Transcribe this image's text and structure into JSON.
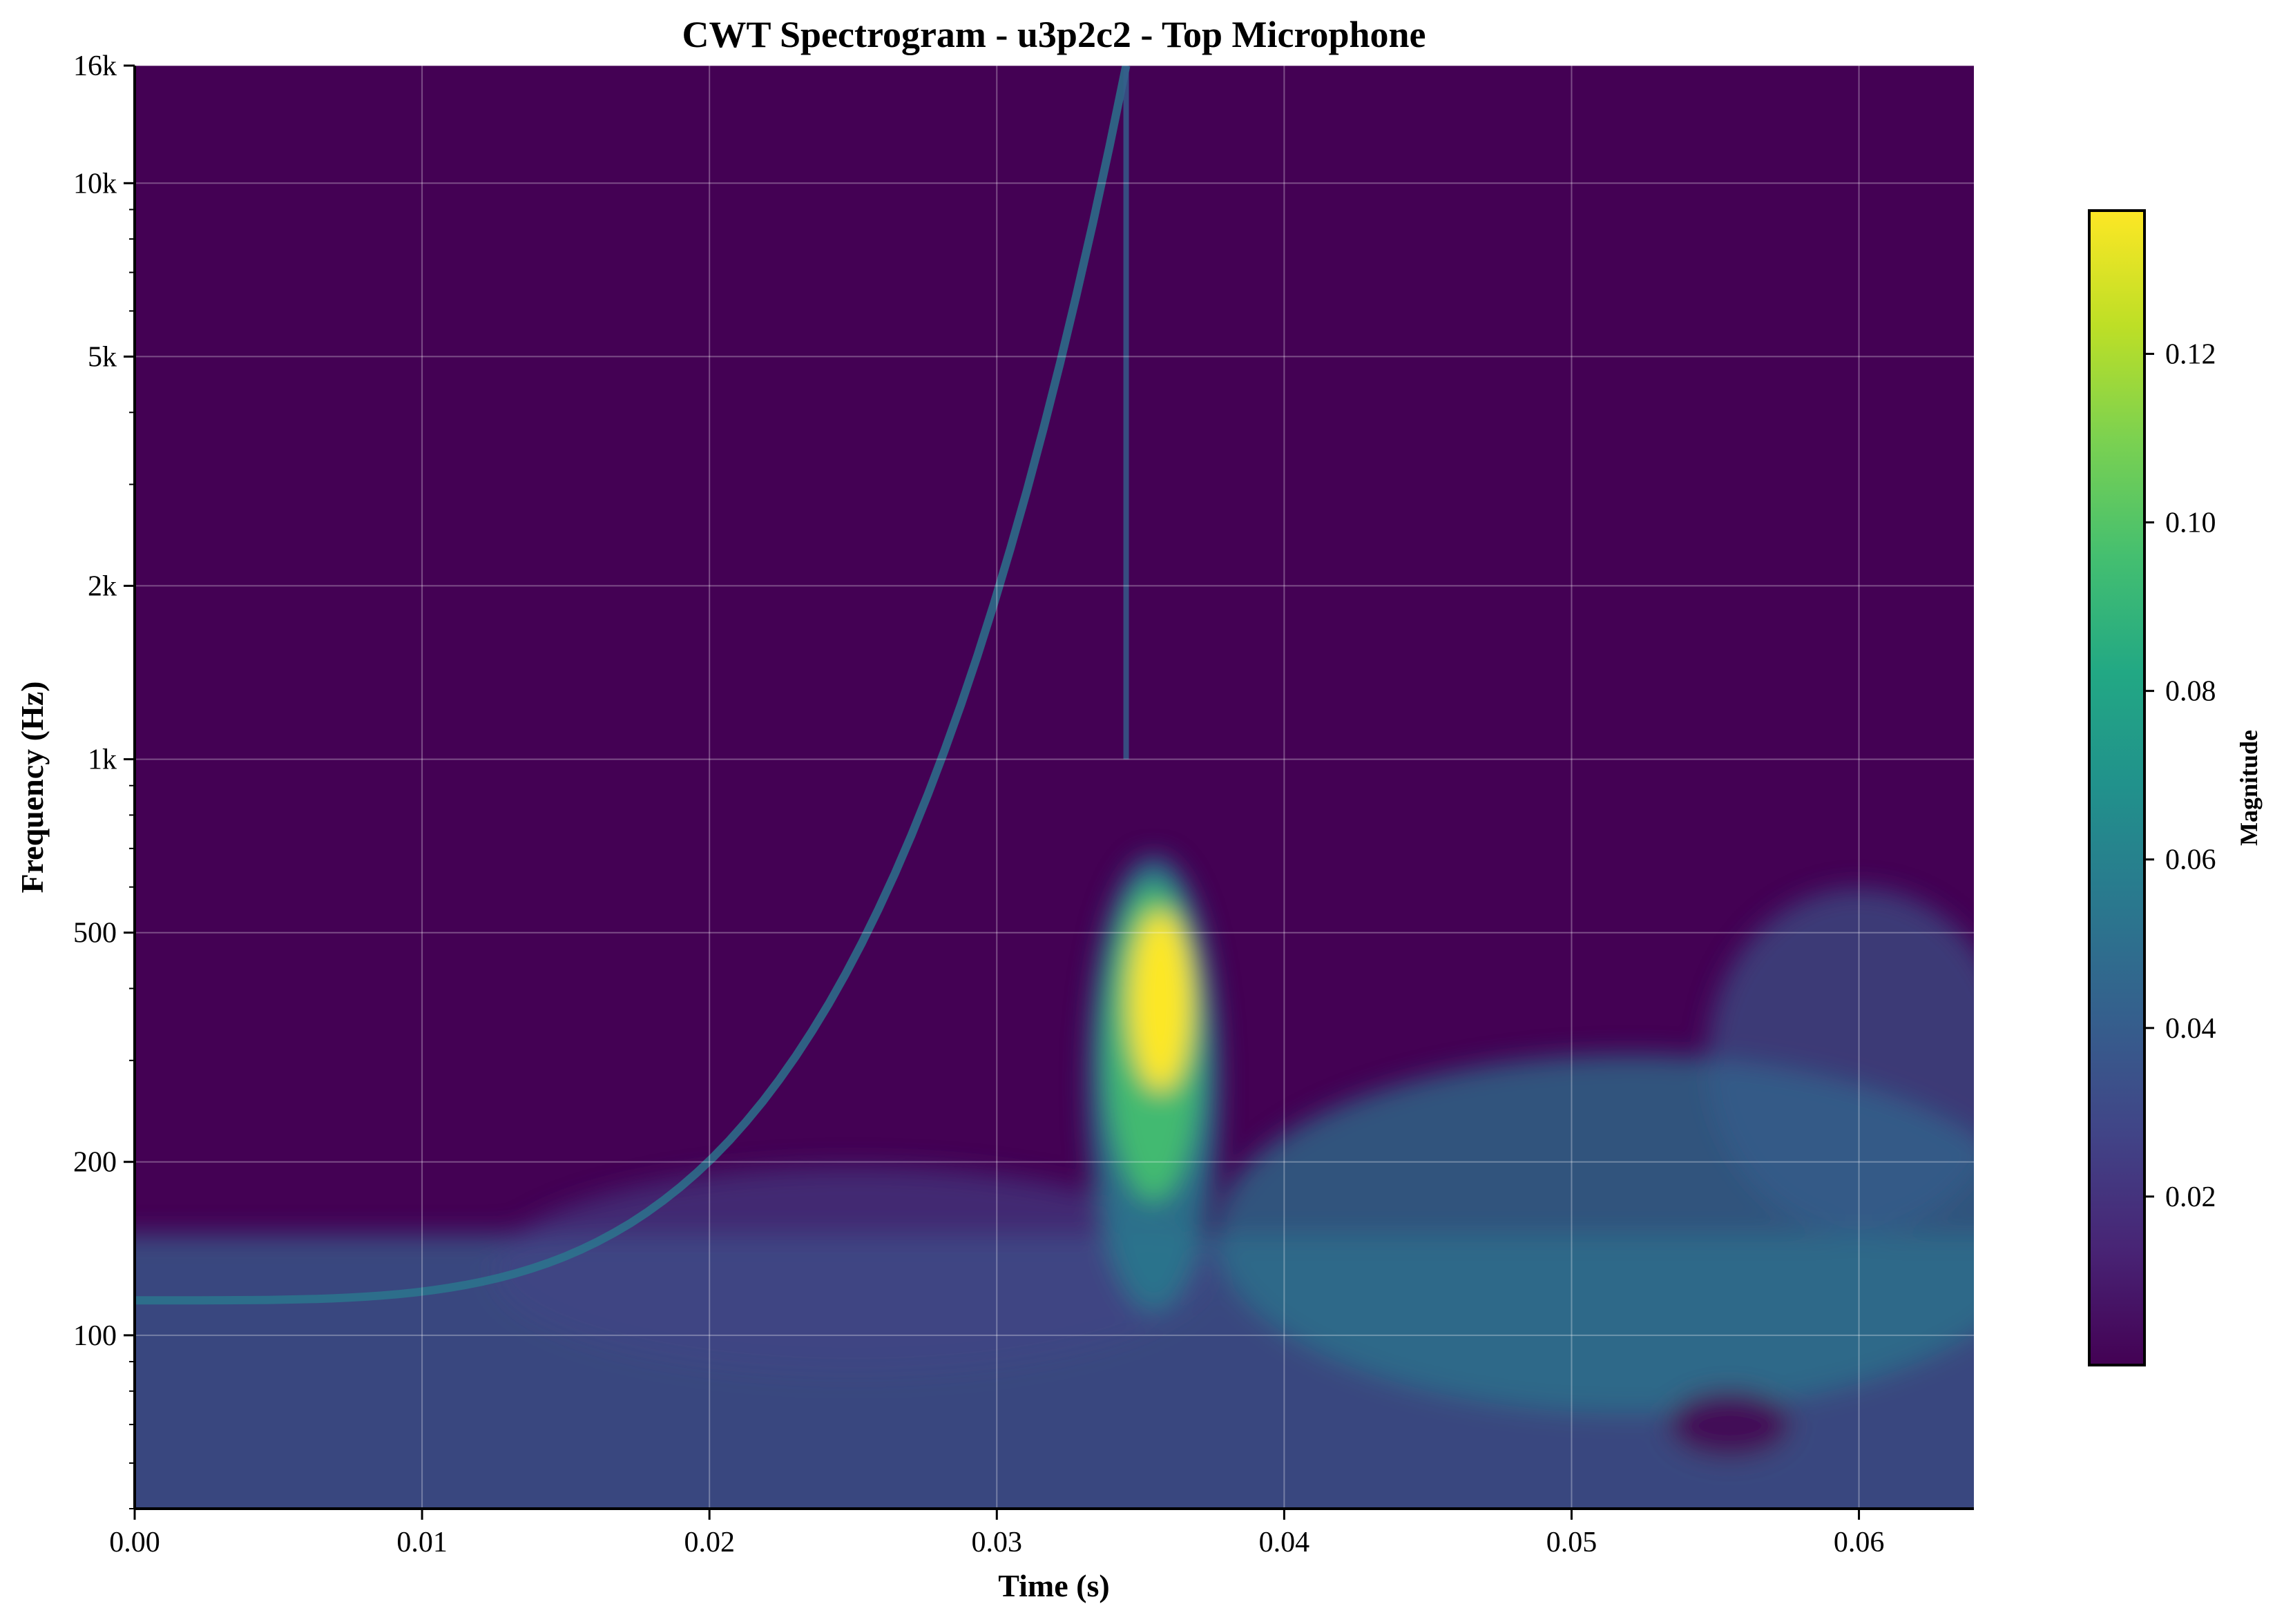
{
  "chart_data": {
    "type": "heatmap",
    "title": "CWT Spectrogram - u3p2c2 - Top Microphone",
    "xlabel": "Time (s)",
    "ylabel": "Frequency (Hz)",
    "colorbar_label": "Magnitude",
    "colormap": "viridis",
    "x_scale": "linear",
    "y_scale": "log",
    "xlim": [
      0.0,
      0.064
    ],
    "ylim": [
      50,
      16000
    ],
    "grid": true,
    "x_ticks": [
      0.0,
      0.01,
      0.02,
      0.03,
      0.04,
      0.05,
      0.06
    ],
    "x_tick_labels": [
      "0.00",
      "0.01",
      "0.02",
      "0.03",
      "0.04",
      "0.05",
      "0.06"
    ],
    "y_ticks": [
      100,
      200,
      500,
      1000,
      2000,
      5000,
      10000,
      16000
    ],
    "y_tick_labels": [
      "100",
      "200",
      "500",
      "1k",
      "2k",
      "5k",
      "10k",
      "16k"
    ],
    "colorbar_range": [
      0.0,
      0.137
    ],
    "colorbar_ticks": [
      0.02,
      0.04,
      0.06,
      0.08,
      0.1,
      0.12
    ],
    "colorbar_tick_labels": [
      "0.02",
      "0.04",
      "0.06",
      "0.08",
      "0.10",
      "0.12"
    ],
    "features": [
      {
        "kind": "peak",
        "time": 0.0357,
        "frequency": 380,
        "magnitude": 0.135
      },
      {
        "kind": "chirp_ridge",
        "from_time": 0.0,
        "from_frequency": 115,
        "to_time": 0.0345,
        "to_frequency": 16000
      },
      {
        "kind": "low_frequency_band",
        "frequency_range": [
          50,
          150
        ],
        "typical_magnitude": 0.045
      },
      {
        "kind": "dark_spot",
        "time": 0.0555,
        "frequency": 70,
        "magnitude": 0.005
      }
    ]
  },
  "colors": {
    "viridis_low": "#440154",
    "viridis_mid": "#21918c",
    "viridis_high": "#fde725",
    "grid": "#ffffff"
  }
}
